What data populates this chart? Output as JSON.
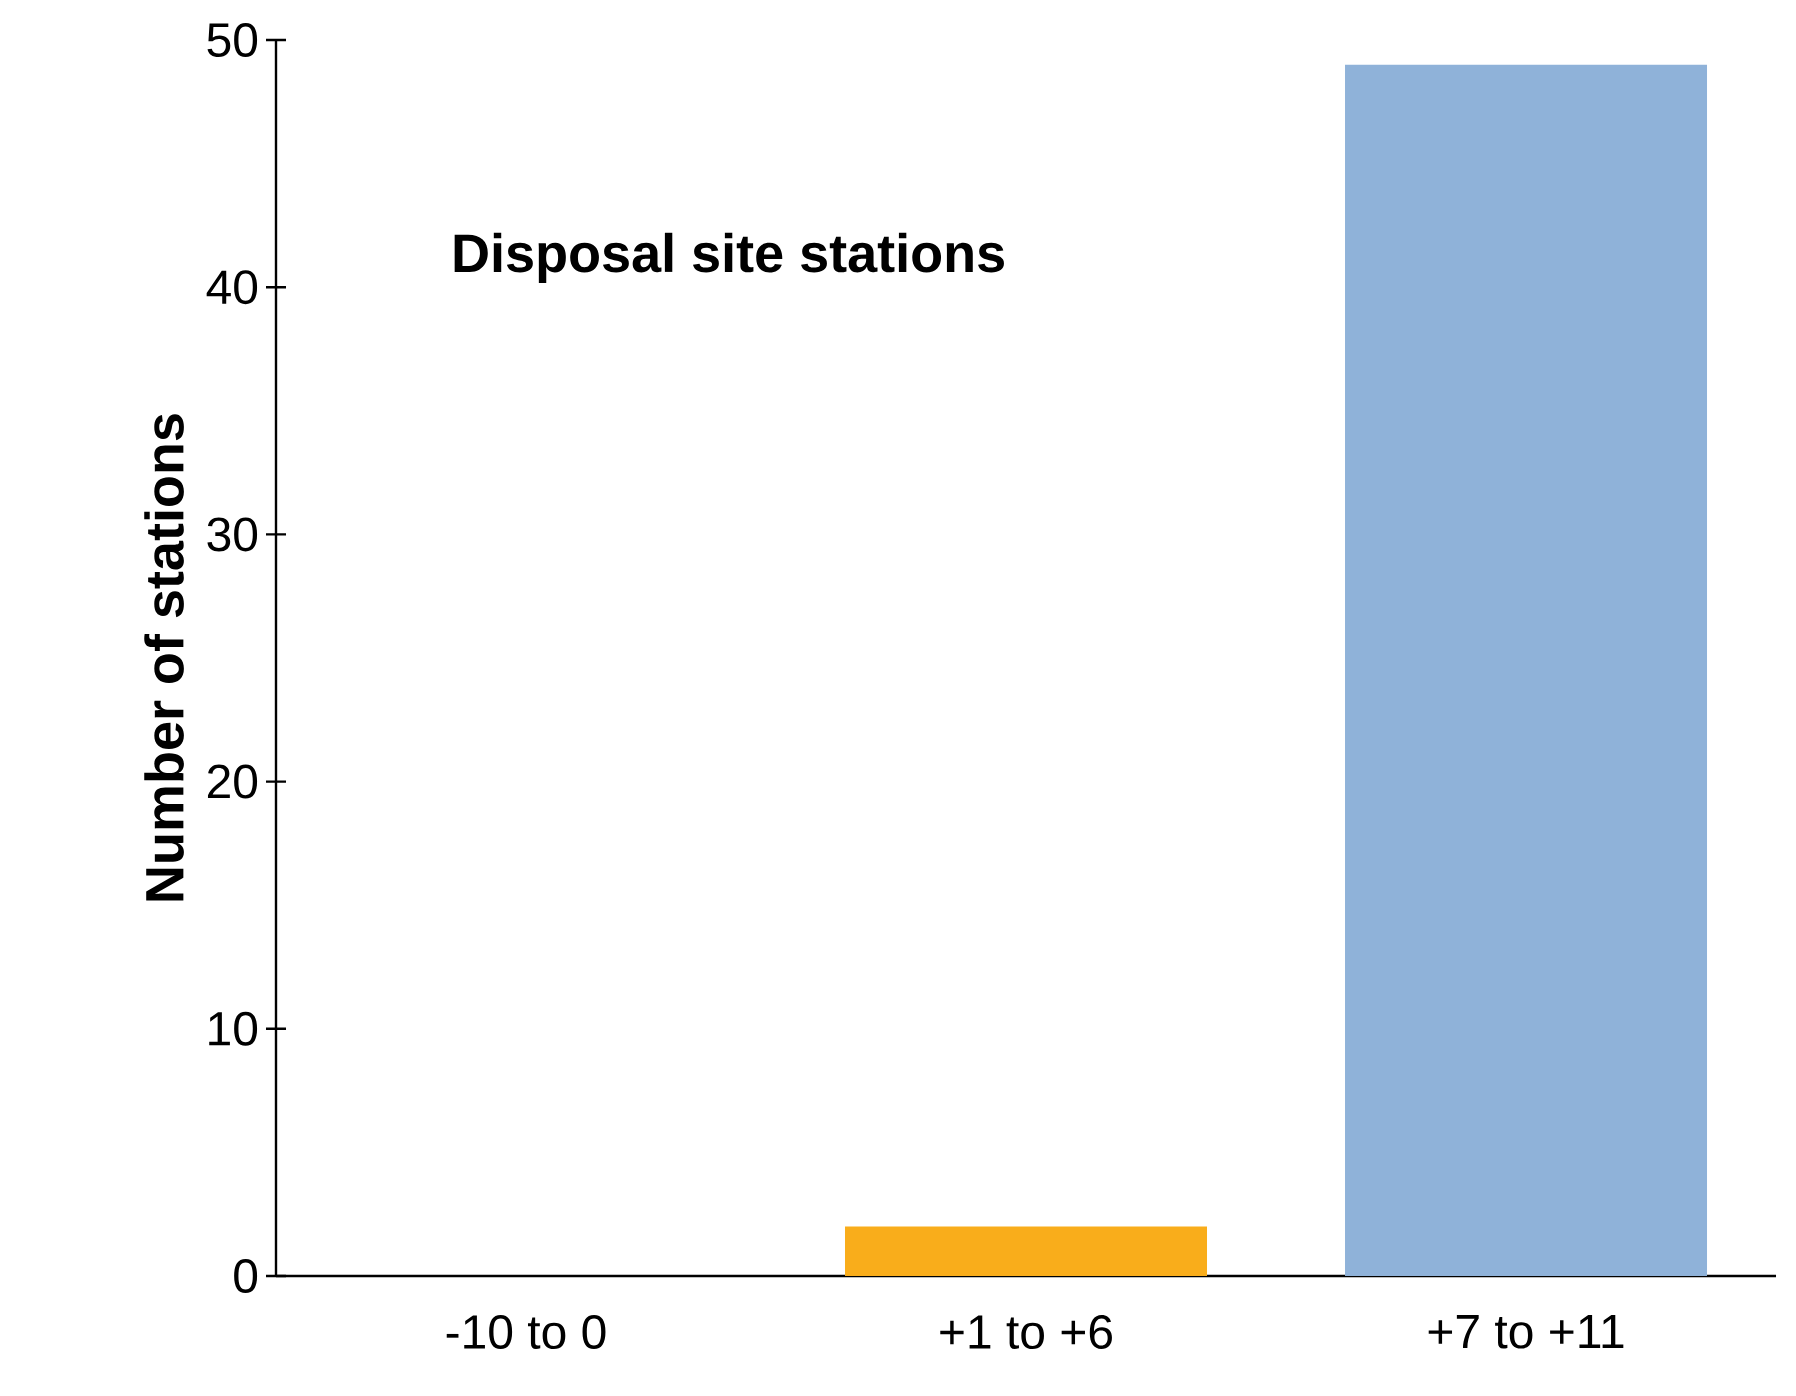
{
  "chart_data": {
    "type": "bar",
    "title": "Disposal site stations",
    "ylabel": "Number of stations",
    "categories": [
      "-10 to 0",
      "+1 to +6",
      "+7 to +11"
    ],
    "values": [
      0,
      2,
      49
    ],
    "colors": [
      "#f9ad1b",
      "#f9ad1b",
      "#8fb2d9"
    ],
    "ylim": [
      0,
      50
    ],
    "yticks": [
      0,
      10,
      20,
      30,
      40,
      50
    ],
    "grid": false
  }
}
